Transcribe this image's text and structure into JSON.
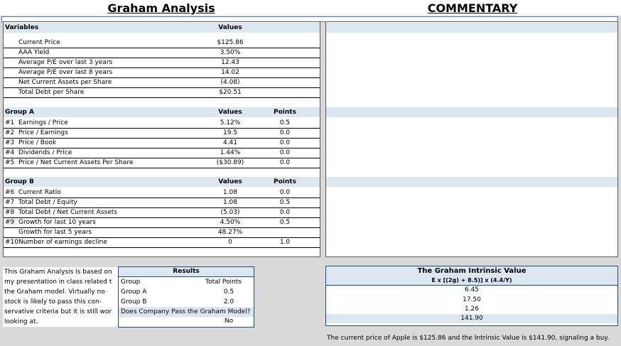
{
  "left_title": "Graham Analysis",
  "right_title": "COMMENTARY",
  "variables": {
    "header": "Variables",
    "values_header": "Values",
    "rows": [
      {
        "label": "Current Price",
        "value": "$125.86"
      },
      {
        "label": "AAA Yield",
        "value": "3.50%"
      },
      {
        "label": "Average P/E over last 3 years",
        "value": "12.43"
      },
      {
        "label": "Average P/E over last 8 years",
        "value": "14.02"
      },
      {
        "label": "Net Current Assets per Share",
        "value": "(4.08)"
      },
      {
        "label": "Total Debt per Share",
        "value": "$20.51"
      }
    ]
  },
  "group_a": {
    "header": "Group A",
    "values_header": "Values",
    "points_header": "Points",
    "rows": [
      {
        "id": "#1",
        "label": "Earnings / Price",
        "value": "5.12%",
        "points": "0.5"
      },
      {
        "id": "#2",
        "label": "Price / Earnings",
        "value": "19.5",
        "points": "0.0"
      },
      {
        "id": "#3",
        "label": "Price / Book",
        "value": "4.41",
        "points": "0.0"
      },
      {
        "id": "#4",
        "label": "Dividends / Price",
        "value": "1.44%",
        "points": "0.0"
      },
      {
        "id": "#5",
        "label": "Price / Net Current Assets Per Share",
        "value": "($30.89)",
        "points": "0.0"
      }
    ]
  },
  "group_b": {
    "header": "Group B",
    "values_header": "Values",
    "points_header": "Points",
    "rows": [
      {
        "id": "#6",
        "label": "Current Ratio",
        "value": "1.08",
        "points": "0.0"
      },
      {
        "id": "#7",
        "label": "Total Debt / Equity",
        "value": "1.08",
        "points": "0.5"
      },
      {
        "id": "#8",
        "label": "Total Debt / Net Current Assets",
        "value": "(5.03)",
        "points": "0.0"
      },
      {
        "id": "#9",
        "label": "Growth for last 10 years",
        "value": "4.50%",
        "points": "0.5"
      },
      {
        "id": "",
        "label": "Growth for last 5 years",
        "value": "48.27%",
        "points": ""
      },
      {
        "id": "#10",
        "label": "Number of earnings decline",
        "value": "0",
        "points": "1.0"
      }
    ]
  },
  "note_lines": [
    "This Graham Analysis is based on",
    "my presentation in class related t",
    "the Graham model. Virtually no",
    "stock is likely to pass this con-",
    "servative criteria but it is still wor",
    "looking at."
  ],
  "results": {
    "title": "Results",
    "col1_header": "Group",
    "col2_header": "Total Points",
    "rows": [
      {
        "label": "Group A",
        "value": "0.5"
      },
      {
        "label": "Group B",
        "value": "2.0"
      }
    ],
    "pass_question": "Does Company Pass the Graham Model?",
    "pass_answer": "No"
  },
  "intrinsic": {
    "title": "The Graham Intrinsic Value",
    "formula": "E x [(2g) + 8.5)] x (4.4/Y)",
    "values": [
      "6.45",
      "17.50",
      "1.26",
      "141.90"
    ],
    "summary": "The current price of Apple is $125.86 and the Intrinsic Value is $141.90, signaling a buy."
  },
  "colors": {
    "header_band": "#dce6f1",
    "gray_background": "#d9d9d9",
    "border_blue": "#1f4e79"
  }
}
